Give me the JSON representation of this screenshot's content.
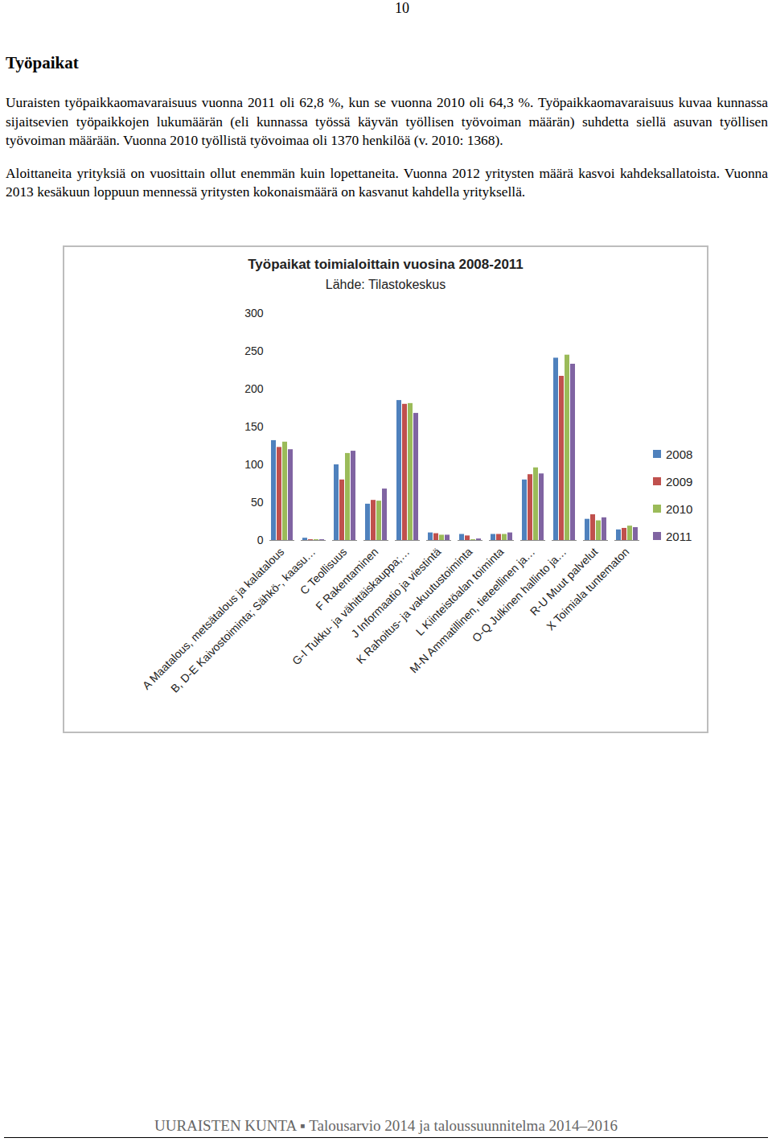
{
  "page_number": "10",
  "heading": "Työpaikat",
  "paragraphs": [
    "Uuraisten työpaikkaomavaraisuus vuonna 2011 oli 62,8 %, kun se vuonna 2010 oli 64,3 %. Työpaikkaomavaraisuus kuvaa kunnassa sijaitsevien työpaikkojen lukumäärän (eli kunnassa työssä käyvän työllisen työvoiman määrän) suhdetta siellä asuvan työllisen työvoiman määrään. Vuonna 2010 työllistä työvoimaa oli 1370 henkilöä (v. 2010: 1368).",
    "Aloittaneita yrityksiä on vuosittain ollut enemmän kuin lopettaneita. Vuonna 2012 yritysten määrä kasvoi kahdeksallatoista. Vuonna 2013 kesäkuun loppuun mennessä yritysten kokonaismäärä on kasvanut kahdella yrityksellä."
  ],
  "chart_data": {
    "type": "bar",
    "title": "Työpaikat toimialoittain vuosina 2008-2011",
    "subtitle": "Lähde: Tilastokeskus",
    "categories": [
      "A Maatalous, metsätalous ja kalatalous",
      "B, D-E Kaivostoiminta; Sähkö-, kaasu…",
      "C Teollisuus",
      "F Rakentaminen",
      "G-I Tukku- ja vähittäiskauppa;…",
      "J Informaatio ja viestintä",
      "K Rahoitus- ja vakuutustoiminta",
      "L Kiinteistöalan toiminta",
      "M-N Ammatillinen, tieteellinen ja…",
      "O-Q Julkinen hallinto ja…",
      "R-U Muut palvelut",
      "X Toimiala tuntematon"
    ],
    "series": [
      {
        "name": "2008",
        "color": "#4f81bd",
        "values": [
          132,
          3,
          100,
          48,
          185,
          10,
          8,
          8,
          80,
          241,
          28,
          14
        ]
      },
      {
        "name": "2009",
        "color": "#c0504d",
        "values": [
          123,
          1,
          80,
          53,
          180,
          9,
          6,
          8,
          87,
          217,
          34,
          16
        ]
      },
      {
        "name": "2010",
        "color": "#9bbb59",
        "values": [
          130,
          1,
          115,
          52,
          181,
          7,
          1,
          8,
          96,
          245,
          26,
          19
        ]
      },
      {
        "name": "2011",
        "color": "#8064a2",
        "values": [
          120,
          1,
          118,
          68,
          168,
          7,
          2,
          10,
          88,
          233,
          30,
          17
        ]
      }
    ],
    "ylim": [
      0,
      300
    ],
    "yticks": [
      0,
      50,
      100,
      150,
      200,
      250,
      300
    ],
    "grid": false,
    "legend": "right"
  },
  "footer": "UURAISTEN KUNTA ▪ Talousarvio 2014 ja taloussuunnitelma 2014–2016"
}
